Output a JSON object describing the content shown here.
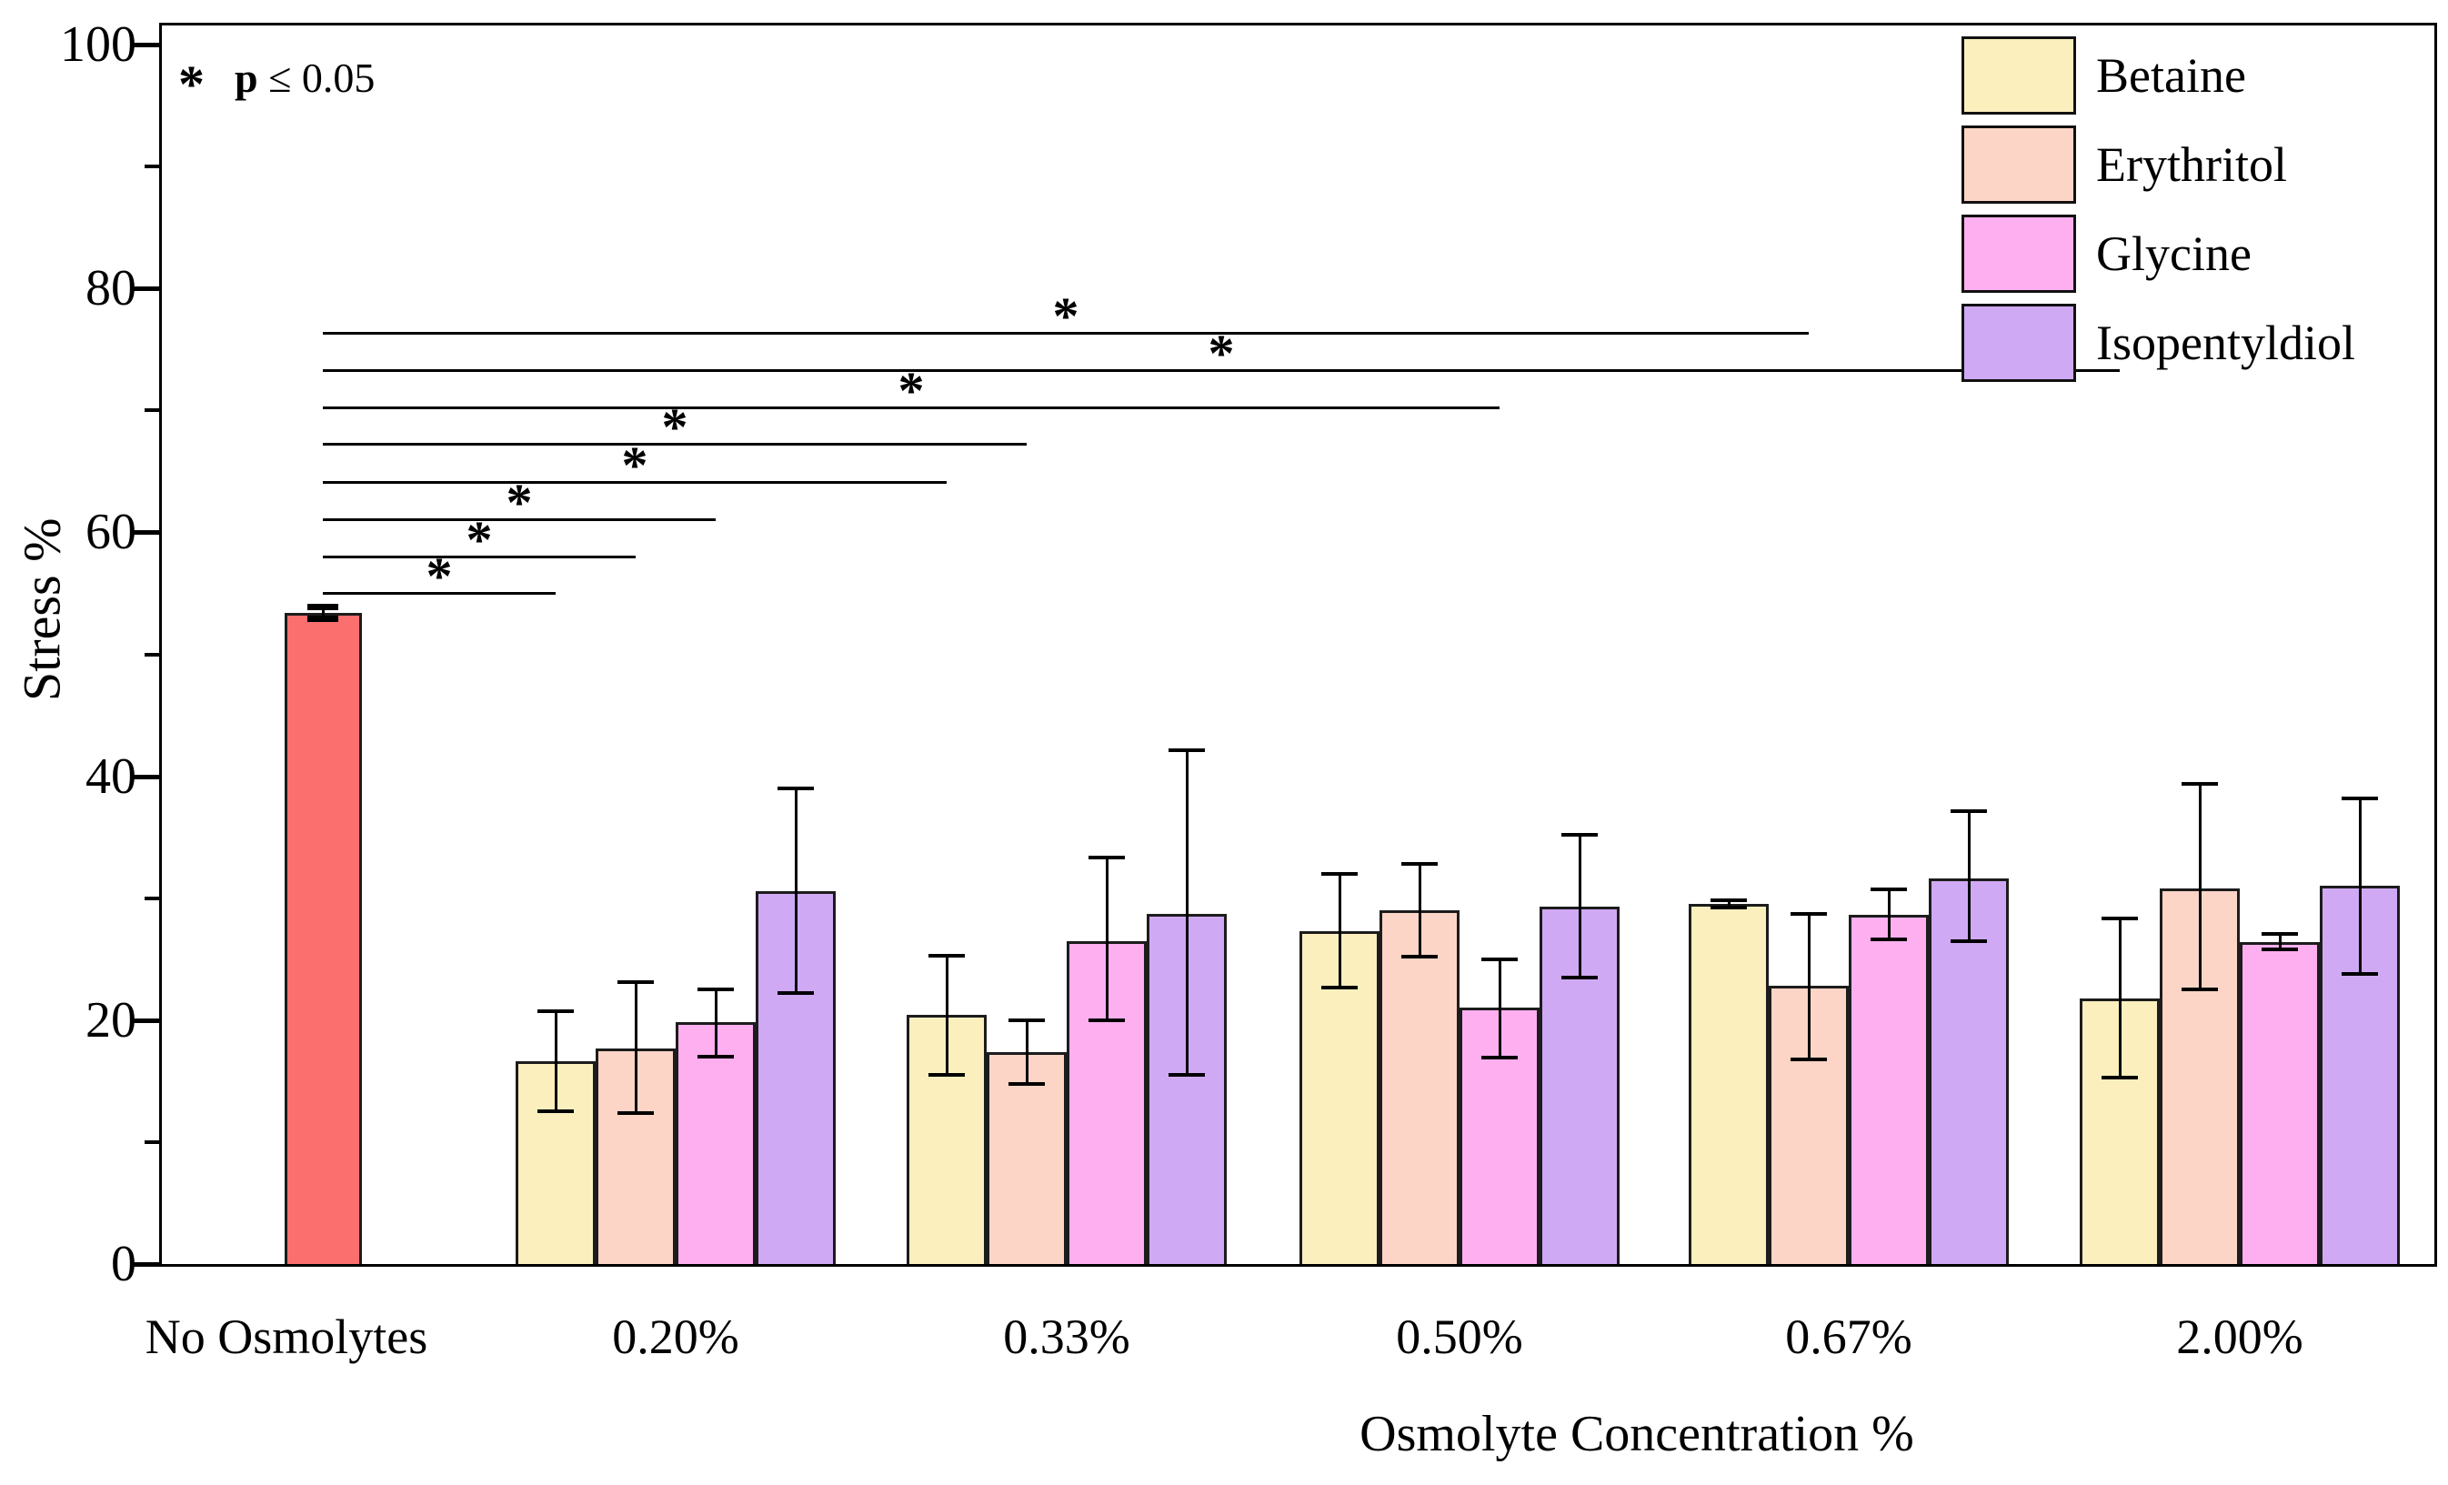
{
  "figure": {
    "annotation": {
      "symbol": "*",
      "p": "p",
      "rest": " ≤ 0.05"
    },
    "y_axis": {
      "title": "Stress %",
      "min": 0,
      "max": 100,
      "major_step": 20,
      "minor_step": 10,
      "tick_values": [
        0,
        20,
        40,
        60,
        80,
        100
      ],
      "tick_labels": [
        "0",
        "20",
        "40",
        "60",
        "80",
        "100"
      ],
      "minor_tick_values": [
        10,
        30,
        50,
        70,
        90
      ]
    },
    "x_axis": {
      "title": "Osmolyte Concentration %",
      "control_label": "No Osmolytes",
      "group_labels": [
        "0.20%",
        "0.33%",
        "0.50%",
        "0.67%",
        "2.00%"
      ]
    },
    "colors": {
      "control": "#FB6F6F",
      "betaine": "#FBEFBE",
      "erythritol": "#FCD5C6",
      "glycine": "#FDAFEF",
      "isopentyldiol": "#D0A9F5",
      "bar_border": "#1c1c1c",
      "axis": "#000000"
    }
  },
  "chart_data": {
    "type": "bar",
    "title": "",
    "xlabel": "Osmolyte Concentration %",
    "ylabel": "Stress %",
    "ylim": [
      0,
      100
    ],
    "grid": false,
    "legend_position": "top-right",
    "categories": [
      "No Osmolytes",
      "0.20%",
      "0.33%",
      "0.50%",
      "0.67%",
      "2.00%"
    ],
    "control": {
      "category": "No Osmolytes",
      "value": 53.4,
      "err_low": 52.9,
      "err_high": 53.9,
      "color": "#FB6F6F"
    },
    "series": [
      {
        "name": "Betaine",
        "color": "#FBEFBE",
        "values": [
          16.6,
          20.4,
          27.3,
          29.5,
          21.8
        ],
        "err_low": [
          12.5,
          15.5,
          22.7,
          29.2,
          15.3
        ],
        "err_high": [
          20.7,
          25.3,
          32.0,
          29.8,
          28.3
        ]
      },
      {
        "name": "Erythritol",
        "color": "#FCD5C6",
        "values": [
          17.7,
          17.4,
          29.0,
          22.8,
          30.8
        ],
        "err_low": [
          12.4,
          14.8,
          25.2,
          16.8,
          22.5
        ],
        "err_high": [
          23.1,
          20.0,
          32.8,
          28.7,
          39.4
        ]
      },
      {
        "name": "Glycine",
        "color": "#FDAFEF",
        "values": [
          19.8,
          26.5,
          21.0,
          28.6,
          26.4
        ],
        "err_low": [
          17.0,
          20.0,
          16.9,
          26.6,
          25.8
        ],
        "err_high": [
          22.5,
          33.3,
          25.0,
          30.7,
          27.1
        ]
      },
      {
        "name": "Isopentyldiol",
        "color": "#D0A9F5",
        "values": [
          30.6,
          28.7,
          29.3,
          31.6,
          31.0
        ],
        "err_low": [
          22.2,
          15.5,
          23.5,
          26.5,
          23.8
        ],
        "err_high": [
          39.0,
          42.1,
          35.2,
          37.1,
          38.2
        ]
      }
    ],
    "significance": {
      "symbol": "*",
      "note": "p ≤ 0.05",
      "lines": [
        {
          "y": 55.0,
          "from": "No Osmolytes",
          "to_group": "0.20%",
          "to_series": "Betaine"
        },
        {
          "y": 58.0,
          "from": "No Osmolytes",
          "to_group": "0.20%",
          "to_series": "Erythritol"
        },
        {
          "y": 61.0,
          "from": "No Osmolytes",
          "to_group": "0.20%",
          "to_series": "Glycine"
        },
        {
          "y": 64.1,
          "from": "No Osmolytes",
          "to_group": "0.33%",
          "to_series": "Betaine"
        },
        {
          "y": 67.2,
          "from": "No Osmolytes",
          "to_group": "0.33%",
          "to_series": "Erythritol"
        },
        {
          "y": 70.2,
          "from": "No Osmolytes",
          "to_group": "0.50%",
          "to_series": "Glycine"
        },
        {
          "y": 73.3,
          "from": "No Osmolytes",
          "to_group": "2.00%",
          "to_series": "Betaine"
        },
        {
          "y": 76.3,
          "from": "No Osmolytes",
          "to_group": "0.67%",
          "to_series": "Erythritol"
        }
      ]
    }
  }
}
